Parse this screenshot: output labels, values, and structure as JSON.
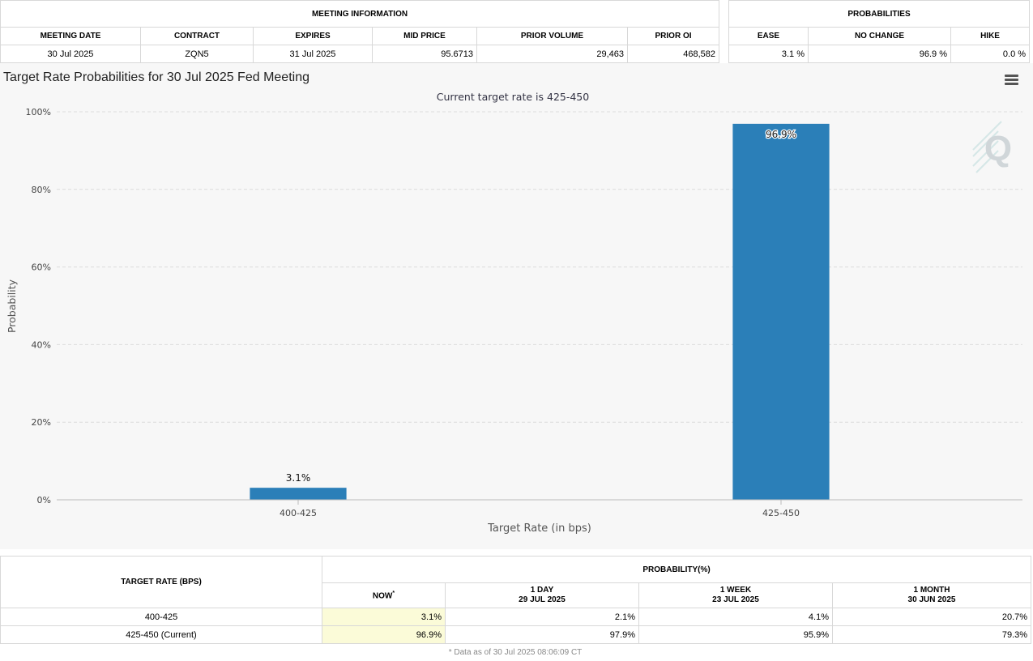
{
  "meeting_info": {
    "group_header": "MEETING INFORMATION",
    "columns": [
      "MEETING DATE",
      "CONTRACT",
      "EXPIRES",
      "MID PRICE",
      "PRIOR VOLUME",
      "PRIOR OI"
    ],
    "row": [
      "30 Jul 2025",
      "ZQN5",
      "31 Jul 2025",
      "95.6713",
      "29,463",
      "468,582"
    ]
  },
  "probabilities": {
    "group_header": "PROBABILITIES",
    "columns": [
      "EASE",
      "NO CHANGE",
      "HIKE"
    ],
    "row": [
      "3.1 %",
      "96.9 %",
      "0.0 %"
    ]
  },
  "chart_title": "Target Rate Probabilities for 30 Jul 2025 Fed Meeting",
  "menu_icon": "hamburger-menu-icon",
  "watermark_icon": "q-logo-watermark",
  "colors": {
    "bar": "#2b7fb8",
    "background": "#f7f7f7",
    "now_highlight": "#fbfbd8"
  },
  "chart_data": {
    "type": "bar",
    "subtitle": "Current target rate is 425-450",
    "categories": [
      "400-425",
      "425-450"
    ],
    "values": [
      3.1,
      96.9
    ],
    "data_labels": [
      "3.1%",
      "96.9%"
    ],
    "xlabel": "Target Rate (in bps)",
    "ylabel": "Probability",
    "ylim": [
      0,
      100
    ],
    "yticks": [
      "0%",
      "20%",
      "40%",
      "60%",
      "80%",
      "100%"
    ],
    "grid": true
  },
  "history_table": {
    "target_header": "TARGET RATE (BPS)",
    "group_header": "PROBABILITY(%)",
    "columns": [
      {
        "line1": "NOW",
        "line2": "",
        "marker": "*"
      },
      {
        "line1": "1 DAY",
        "line2": "29 JUL 2025",
        "marker": ""
      },
      {
        "line1": "1 WEEK",
        "line2": "23 JUL 2025",
        "marker": ""
      },
      {
        "line1": "1 MONTH",
        "line2": "30 JUN 2025",
        "marker": ""
      }
    ],
    "rows": [
      {
        "rate": "400-425",
        "values": [
          "3.1%",
          "2.1%",
          "4.1%",
          "20.7%"
        ]
      },
      {
        "rate": "425-450 (Current)",
        "values": [
          "96.9%",
          "97.9%",
          "95.9%",
          "79.3%"
        ]
      }
    ],
    "footnote": "* Data as of 30 Jul 2025 08:06:09 CT"
  }
}
